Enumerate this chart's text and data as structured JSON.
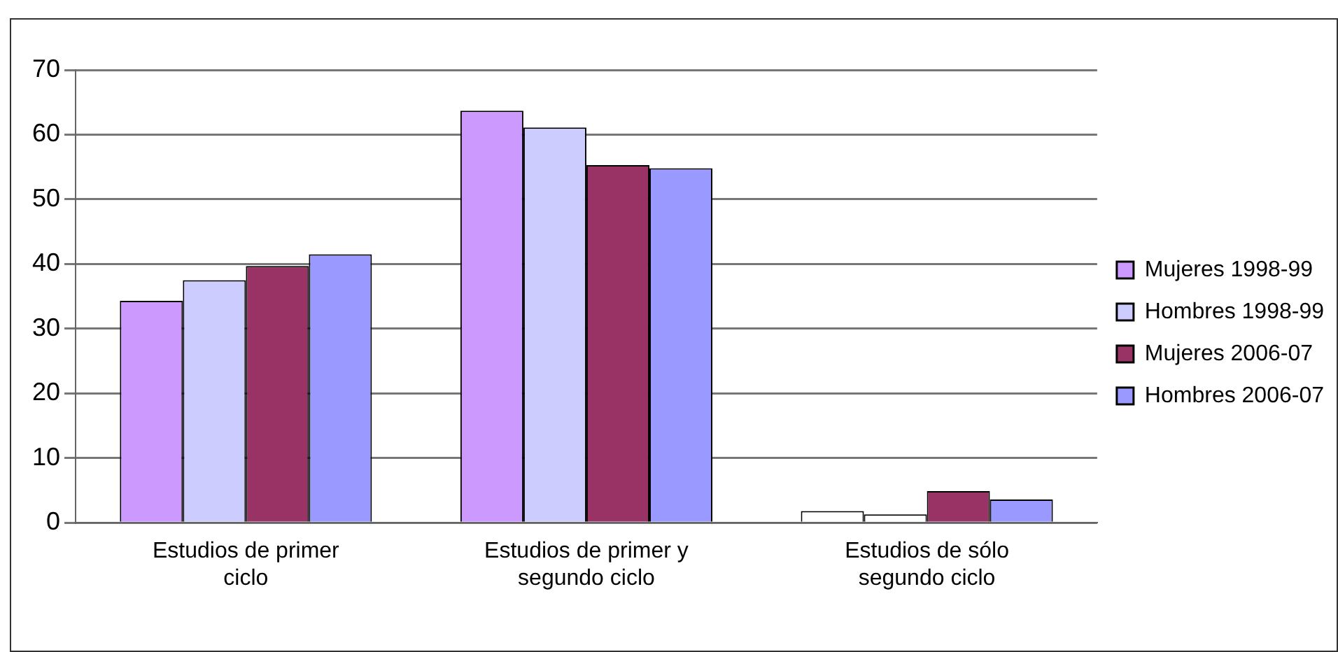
{
  "chart_data": {
    "type": "bar",
    "categories": [
      "Estudios de primer ciclo",
      "Estudios de primer y segundo ciclo",
      "Estudios de sólo segundo ciclo"
    ],
    "series": [
      {
        "name": "Mujeres 1998-99",
        "color": "#cc99ff",
        "colors": [
          "#cc99ff",
          "#cc99ff",
          "#ffffff"
        ],
        "values": [
          34.3,
          63.7,
          1.8
        ]
      },
      {
        "name": "Hombres 1998-99",
        "color": "#ccccff",
        "colors": [
          "#ccccff",
          "#ccccff",
          "#ffffff"
        ],
        "values": [
          37.5,
          61.1,
          1.3
        ]
      },
      {
        "name": "Mujeres 2006-07",
        "color": "#993366",
        "values": [
          39.7,
          55.3,
          4.9
        ]
      },
      {
        "name": "Hombres 2006-07",
        "color": "#9999ff",
        "values": [
          41.5,
          54.8,
          3.6
        ]
      }
    ],
    "ylim": [
      0,
      70
    ],
    "yticks": [
      0,
      10,
      20,
      30,
      40,
      50,
      60,
      70
    ],
    "grid": "y",
    "legend": "right"
  }
}
